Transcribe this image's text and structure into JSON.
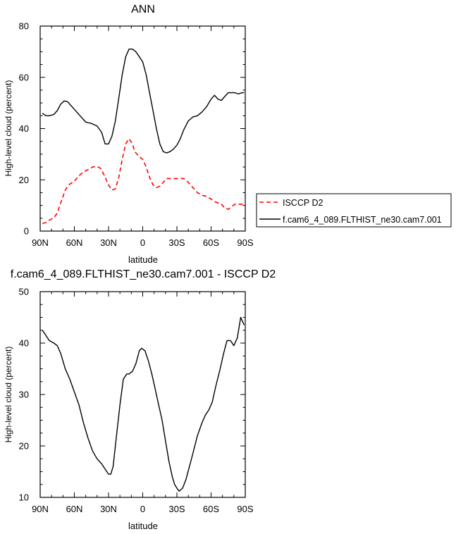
{
  "chart_data": [
    {
      "type": "line",
      "title": "ANN",
      "xlabel": "latitude",
      "ylabel": "High-level cloud (percent)",
      "xlim": [
        90,
        -90
      ],
      "ylim": [
        0,
        80
      ],
      "x_tick_values": [
        90,
        60,
        30,
        0,
        -30,
        -60,
        -90
      ],
      "x_tick_labels": [
        "90N",
        "60N",
        "30N",
        "0",
        "30S",
        "60S",
        "90S"
      ],
      "y_ticks": [
        0,
        20,
        40,
        60,
        80
      ],
      "legend": "right",
      "series": [
        {
          "name": "ISCCP D2",
          "color": "#ff0000",
          "dash": "dashed",
          "x": [
            88,
            85,
            82,
            78,
            75,
            72,
            68,
            65,
            60,
            55,
            52,
            48,
            44,
            40,
            37,
            34,
            30,
            27,
            24,
            21,
            18,
            15,
            12,
            9,
            7,
            5,
            3,
            0,
            -3,
            -6,
            -9,
            -12,
            -15,
            -18,
            -21,
            -24,
            -27,
            -30,
            -33,
            -36,
            -40,
            -44,
            -48,
            -52,
            -56,
            -60,
            -63,
            -66,
            -69,
            -72,
            -75,
            -78,
            -81,
            -84,
            -88
          ],
          "y": [
            3,
            3.3,
            4.2,
            5.2,
            7,
            11,
            16,
            18,
            19.5,
            22,
            23,
            24,
            25,
            25.2,
            24.5,
            22,
            18,
            16,
            16.5,
            21,
            28,
            34,
            36,
            34,
            31,
            30,
            29,
            28,
            25,
            21,
            18,
            17,
            17.5,
            19,
            20.5,
            20.5,
            20.5,
            20.5,
            20.5,
            20.5,
            19,
            17,
            15,
            14,
            13.5,
            12.5,
            11.5,
            11,
            10.5,
            9,
            8.5,
            9.5,
            10.5,
            10.5,
            10.5
          ]
        },
        {
          "name": "f.cam6_4_089.FLTHIST_ne30.cam7.001",
          "color": "#000000",
          "dash": "solid",
          "x": [
            88,
            85,
            82,
            78,
            75,
            72,
            69,
            66,
            63,
            60,
            55,
            50,
            45,
            40,
            36,
            33,
            30,
            27,
            24,
            21,
            18,
            15,
            12,
            9,
            6,
            3,
            0,
            -3,
            -6,
            -9,
            -12,
            -15,
            -18,
            -21,
            -24,
            -27,
            -30,
            -33,
            -36,
            -40,
            -44,
            -48,
            -52,
            -56,
            -60,
            -63,
            -66,
            -69,
            -72,
            -75,
            -78,
            -81,
            -84,
            -87,
            -89
          ],
          "y": [
            46,
            45,
            45,
            45.5,
            47,
            49.5,
            50.8,
            50.5,
            49,
            47.5,
            45,
            42.5,
            42,
            41,
            38.5,
            34,
            34,
            37,
            43,
            52,
            61,
            68,
            71,
            71,
            70,
            68,
            66,
            61,
            54,
            47,
            40,
            34,
            31,
            30.5,
            31,
            32,
            33.5,
            36,
            39.5,
            43,
            44.5,
            45,
            46.5,
            48.5,
            51.5,
            53,
            51.5,
            51,
            52.5,
            54,
            54,
            54,
            53.5,
            54,
            54
          ]
        }
      ]
    },
    {
      "type": "line",
      "title": "f.cam6_4_089.FLTHIST_ne30.cam7.001 - ISCCP D2",
      "xlabel": "latitude",
      "ylabel": "High-level cloud (percent)",
      "xlim": [
        90,
        -90
      ],
      "ylim": [
        10,
        50
      ],
      "x_tick_values": [
        90,
        60,
        30,
        0,
        -30,
        -60,
        -90
      ],
      "x_tick_labels": [
        "90N",
        "60N",
        "30N",
        "0",
        "30S",
        "60S",
        "90S"
      ],
      "y_ticks": [
        10,
        20,
        30,
        40,
        50
      ],
      "series": [
        {
          "color": "#000000",
          "dash": "solid",
          "x": [
            88,
            85,
            82,
            78,
            75,
            72,
            68,
            64,
            60,
            56,
            52,
            48,
            44,
            40,
            36,
            33,
            30,
            28,
            26,
            23,
            20,
            17,
            14,
            12,
            9,
            6,
            3,
            1,
            -2,
            -5,
            -8,
            -11,
            -14,
            -17,
            -20,
            -23,
            -26,
            -28,
            -30,
            -32,
            -35,
            -38,
            -41,
            -44,
            -48,
            -52,
            -55,
            -58,
            -61,
            -64,
            -68,
            -71,
            -74,
            -77,
            -80,
            -83,
            -86,
            -89
          ],
          "y": [
            42.5,
            41.5,
            40.5,
            40,
            39.5,
            38,
            35,
            33,
            30.5,
            28,
            24.5,
            21.5,
            19,
            17.5,
            16.5,
            15.5,
            14.5,
            14.5,
            16,
            22,
            28,
            33,
            34,
            34,
            34.5,
            36,
            38.5,
            39,
            38.5,
            36.5,
            34,
            31,
            28,
            25,
            21,
            17,
            14,
            12.5,
            11.8,
            11.2,
            11.8,
            13.5,
            16,
            18.5,
            22,
            24.5,
            26,
            27,
            28.5,
            31.5,
            35,
            38,
            40.5,
            40.5,
            39.5,
            41,
            45,
            43.5
          ]
        }
      ]
    }
  ]
}
